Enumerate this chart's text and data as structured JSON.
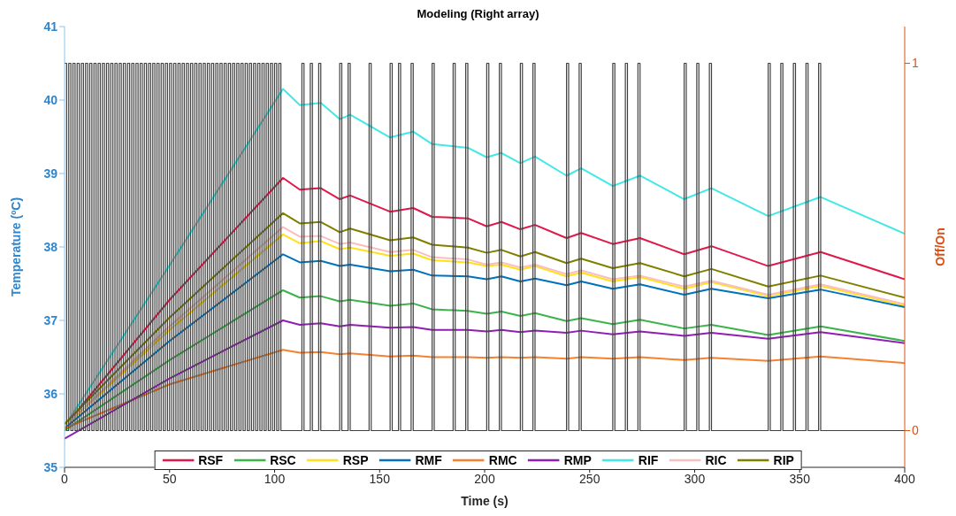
{
  "chart_data": {
    "type": "line",
    "title": "Modeling (Right array)",
    "xlabel": "Time (s)",
    "ylabel": "Temperature (ºC)",
    "y2label": "Off/On",
    "x": [
      0,
      50,
      104,
      112,
      122,
      131,
      136,
      155,
      166,
      175,
      192,
      201,
      208,
      217,
      224,
      239,
      246,
      261,
      274,
      295,
      308,
      335,
      360,
      400
    ],
    "series": [
      {
        "name": "RSF",
        "color": "#e0194a",
        "values": [
          35.56,
          37.28,
          38.94,
          38.78,
          38.8,
          38.65,
          38.7,
          38.48,
          38.53,
          38.41,
          38.39,
          38.28,
          38.34,
          38.24,
          38.3,
          38.12,
          38.19,
          38.04,
          38.12,
          37.9,
          38.01,
          37.74,
          37.93,
          37.56
        ]
      },
      {
        "name": "RSC",
        "color": "#3cb44b",
        "values": [
          35.5,
          36.46,
          37.41,
          37.31,
          37.33,
          37.26,
          37.28,
          37.2,
          37.23,
          37.15,
          37.13,
          37.09,
          37.12,
          37.06,
          37.1,
          36.99,
          37.03,
          36.95,
          37.01,
          36.89,
          36.94,
          36.8,
          36.92,
          36.72
        ]
      },
      {
        "name": "RSP",
        "color": "#ffe119",
        "values": [
          35.56,
          36.87,
          38.17,
          38.05,
          38.08,
          37.97,
          37.99,
          37.88,
          37.91,
          37.82,
          37.79,
          37.74,
          37.76,
          37.69,
          37.74,
          37.6,
          37.65,
          37.53,
          37.59,
          37.43,
          37.52,
          37.33,
          37.47,
          37.2
        ]
      },
      {
        "name": "RMF",
        "color": "#0072bd",
        "values": [
          35.53,
          36.72,
          37.9,
          37.79,
          37.81,
          37.74,
          37.76,
          37.67,
          37.69,
          37.61,
          37.6,
          37.56,
          37.6,
          37.53,
          37.57,
          37.48,
          37.53,
          37.43,
          37.49,
          37.35,
          37.43,
          37.3,
          37.42,
          37.18
        ]
      },
      {
        "name": "RMC",
        "color": "#f58231",
        "values": [
          35.53,
          36.13,
          36.6,
          36.56,
          36.57,
          36.54,
          36.55,
          36.51,
          36.52,
          36.5,
          36.5,
          36.49,
          36.5,
          36.49,
          36.5,
          36.48,
          36.5,
          36.48,
          36.5,
          36.46,
          36.49,
          36.45,
          36.51,
          36.42
        ]
      },
      {
        "name": "RMP",
        "color": "#911eb4",
        "values": [
          35.39,
          36.21,
          37.0,
          36.94,
          36.96,
          36.92,
          36.94,
          36.9,
          36.91,
          36.87,
          36.87,
          36.85,
          36.87,
          36.84,
          36.86,
          36.83,
          36.86,
          36.81,
          36.85,
          36.79,
          36.83,
          36.75,
          36.84,
          36.69
        ]
      },
      {
        "name": "RIF",
        "color": "#42e8e8",
        "values": [
          35.56,
          37.75,
          40.15,
          39.93,
          39.96,
          39.74,
          39.8,
          39.49,
          39.57,
          39.4,
          39.35,
          39.22,
          39.28,
          39.14,
          39.23,
          38.97,
          39.07,
          38.83,
          38.97,
          38.65,
          38.8,
          38.42,
          38.68,
          38.18
        ]
      },
      {
        "name": "RIC",
        "color": "#fabebe",
        "values": [
          35.56,
          36.92,
          38.27,
          38.14,
          38.15,
          38.04,
          38.06,
          37.93,
          37.96,
          37.86,
          37.83,
          37.76,
          37.79,
          37.72,
          37.76,
          37.63,
          37.68,
          37.56,
          37.61,
          37.46,
          37.54,
          37.35,
          37.49,
          37.22
        ]
      },
      {
        "name": "RIP",
        "color": "#808000",
        "values": [
          35.59,
          37.04,
          38.46,
          38.32,
          38.34,
          38.2,
          38.25,
          38.09,
          38.13,
          38.03,
          37.99,
          37.92,
          37.96,
          37.87,
          37.93,
          37.78,
          37.84,
          37.71,
          37.78,
          37.6,
          37.7,
          37.46,
          37.61,
          37.31
        ]
      },
      {
        "type": "step",
        "axis": "y2",
        "color": "#404040",
        "x": [
          0,
          1,
          2,
          3,
          4,
          5,
          6,
          7,
          8,
          9,
          10,
          11,
          12,
          13,
          14,
          15,
          16,
          17,
          18,
          19,
          20,
          21,
          22,
          23,
          24,
          25,
          26,
          27,
          28,
          29,
          30,
          31,
          32,
          33,
          34,
          35,
          36,
          37,
          38,
          39,
          40,
          41,
          42,
          43,
          44,
          45,
          46,
          47,
          48,
          49,
          50,
          51,
          52,
          53,
          54,
          55,
          56,
          57,
          58,
          59,
          60,
          61,
          62,
          63,
          64,
          65,
          66,
          67,
          68,
          69,
          70,
          71,
          72,
          73,
          74,
          75,
          76,
          77,
          78,
          79,
          80,
          81,
          82,
          83,
          84,
          85,
          86,
          87,
          88,
          89,
          90,
          91,
          92,
          93,
          94,
          95,
          96,
          97,
          98,
          99,
          100,
          101,
          102,
          103,
          113,
          114,
          117,
          118,
          121,
          122,
          131,
          132,
          135,
          136,
          145,
          146,
          155,
          156,
          159,
          160,
          165,
          166,
          175,
          176,
          185,
          186,
          191,
          192,
          201,
          202,
          207,
          208,
          217,
          218,
          223,
          224,
          239,
          240,
          245,
          246,
          261,
          262,
          267,
          268,
          273,
          274,
          295,
          296,
          301,
          302,
          307,
          308,
          335,
          336,
          341,
          342,
          347,
          348,
          353,
          354,
          359,
          360,
          400
        ],
        "values": [
          1,
          0,
          1,
          0,
          1,
          0,
          1,
          0,
          1,
          0,
          1,
          0,
          1,
          0,
          1,
          0,
          1,
          0,
          1,
          0,
          1,
          0,
          1,
          0,
          1,
          0,
          1,
          0,
          1,
          0,
          1,
          0,
          1,
          0,
          1,
          0,
          1,
          0,
          1,
          0,
          1,
          0,
          1,
          0,
          1,
          0,
          1,
          0,
          1,
          0,
          1,
          0,
          1,
          0,
          1,
          0,
          1,
          0,
          1,
          0,
          1,
          0,
          1,
          0,
          1,
          0,
          1,
          0,
          1,
          0,
          1,
          0,
          1,
          0,
          1,
          0,
          1,
          0,
          1,
          0,
          1,
          0,
          1,
          0,
          1,
          0,
          1,
          0,
          1,
          0,
          1,
          0,
          1,
          0,
          1,
          0,
          1,
          0,
          1,
          0,
          1,
          0,
          1,
          0,
          1,
          0,
          1,
          0,
          1,
          0,
          1,
          0,
          1,
          0,
          1,
          0,
          1,
          0,
          1,
          0,
          1,
          0,
          1,
          0,
          1,
          0,
          1,
          0,
          1,
          0,
          1,
          0,
          1,
          0,
          1,
          0,
          1,
          0,
          1,
          0,
          1,
          0,
          1,
          0,
          1,
          0,
          1,
          0,
          1,
          0,
          1,
          0,
          1,
          0,
          1,
          0,
          1,
          0,
          1,
          0,
          1,
          0,
          0
        ]
      }
    ],
    "xlim": [
      0,
      400
    ],
    "xticks": [
      0,
      50,
      100,
      150,
      200,
      250,
      300,
      350,
      400
    ],
    "ylim": [
      35,
      41
    ],
    "yticks": [
      35,
      36,
      37,
      38,
      39,
      40,
      41
    ],
    "y2lim": [
      -0.1,
      1.1
    ],
    "y2ticks": [
      0,
      1
    ],
    "legend": "bottom",
    "marker": "none",
    "line_style": "solid"
  }
}
